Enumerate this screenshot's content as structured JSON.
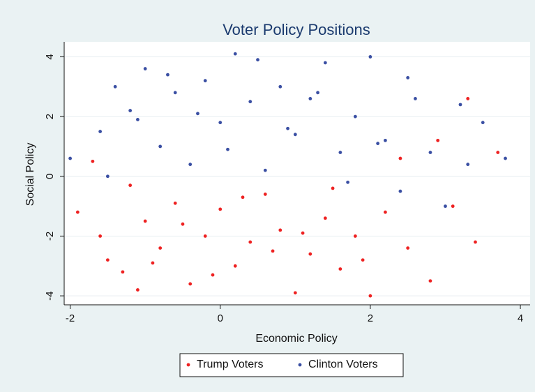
{
  "chart_data": {
    "type": "scatter",
    "title": "Voter Policy Positions",
    "x_label": "Economic Policy",
    "y_label": "Social Policy",
    "xlim": [
      -2.08,
      4.13
    ],
    "ylim": [
      -4.3,
      4.5
    ],
    "xticks": [
      -2,
      0,
      2,
      4
    ],
    "yticks": [
      -4,
      -2,
      0,
      2,
      4
    ],
    "grid": true,
    "legend": "bottom",
    "series": [
      {
        "name": "Trump Voters",
        "color": "#ee2222",
        "x": [
          -1.9,
          -1.7,
          -1.5,
          -1.3,
          -1.1,
          -1.0,
          -0.8,
          -0.6,
          -0.4,
          -0.2,
          0.0,
          0.2,
          0.4,
          0.6,
          0.8,
          1.0,
          1.2,
          1.4,
          1.6,
          1.8,
          2.0,
          2.2,
          2.5,
          2.8,
          3.1,
          3.4,
          3.7,
          -1.6,
          -1.2,
          -0.9,
          -0.5,
          -0.1,
          0.3,
          0.7,
          1.1,
          1.5,
          1.9,
          2.4,
          2.9,
          3.3
        ],
        "values": [
          -1.2,
          0.5,
          -2.8,
          -3.2,
          -3.8,
          -1.5,
          -2.4,
          -0.9,
          -3.6,
          -2.0,
          -1.1,
          -3.0,
          -2.2,
          -0.6,
          -1.8,
          -3.9,
          -2.6,
          -1.4,
          -3.1,
          -2.0,
          -4.0,
          -1.2,
          -2.4,
          -3.5,
          -1.0,
          -2.2,
          0.8,
          -2.0,
          -0.3,
          -2.9,
          -1.6,
          -3.3,
          -0.7,
          -2.5,
          -1.9,
          -0.4,
          -2.8,
          0.6,
          1.2,
          2.6
        ]
      },
      {
        "name": "Clinton Voters",
        "color": "#3a4fa3",
        "x": [
          -2.0,
          -1.6,
          -1.4,
          -1.2,
          -1.0,
          -0.8,
          -0.6,
          -0.4,
          -0.2,
          0.0,
          0.2,
          0.4,
          0.6,
          0.8,
          1.0,
          1.2,
          1.4,
          1.6,
          1.8,
          2.0,
          2.2,
          2.4,
          2.6,
          2.8,
          3.0,
          3.2,
          3.5,
          3.8,
          -1.5,
          -1.1,
          -0.7,
          -0.3,
          0.1,
          0.5,
          0.9,
          1.3,
          1.7,
          2.1,
          2.5,
          3.3
        ],
        "values": [
          0.6,
          1.5,
          3.0,
          2.2,
          3.6,
          1.0,
          2.8,
          0.4,
          3.2,
          1.8,
          4.1,
          2.5,
          0.2,
          3.0,
          1.4,
          2.6,
          3.8,
          0.8,
          2.0,
          4.0,
          1.2,
          -0.5,
          2.6,
          0.8,
          -1.0,
          2.4,
          1.8,
          0.6,
          0.0,
          1.9,
          3.4,
          2.1,
          0.9,
          3.9,
          1.6,
          2.8,
          -0.2,
          1.1,
          3.3,
          0.4
        ]
      }
    ]
  }
}
